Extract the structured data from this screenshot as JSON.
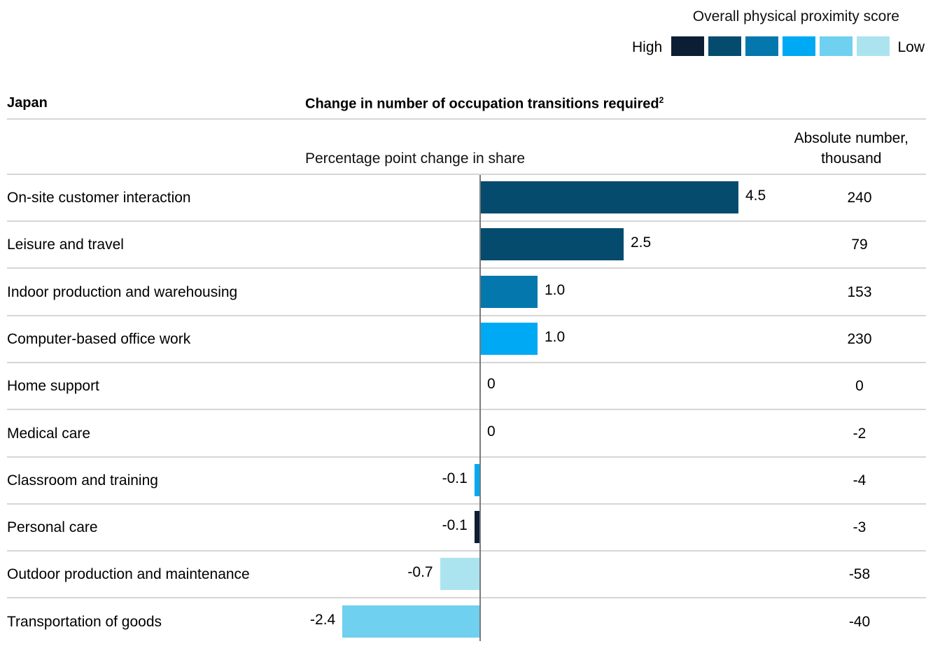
{
  "legend": {
    "title": "Overall physical proximity score",
    "high_label": "High",
    "low_label": "Low",
    "colors": [
      "#0c1e33",
      "#044b6e",
      "#0477ad",
      "#00a9f4",
      "#6fd0ef",
      "#abe4ef"
    ]
  },
  "header": {
    "country": "Japan",
    "title": "Change in number of occupation transitions required",
    "title_sup": "2"
  },
  "subheader": {
    "pct_label": "Percentage point change in share",
    "abs_line1": "Absolute number,",
    "abs_line2": "thousand"
  },
  "chart_data": {
    "type": "bar",
    "orientation": "horizontal",
    "categories": [
      "On-site customer interaction",
      "Leisure and travel",
      "Indoor production and warehousing",
      "Computer-based office work",
      "Home support",
      "Medical care",
      "Classroom and training",
      "Personal care",
      "Outdoor production and maintenance",
      "Transportation of goods"
    ],
    "values": [
      4.5,
      2.5,
      1.0,
      1.0,
      0,
      0,
      -0.1,
      -0.1,
      -0.7,
      -2.4
    ],
    "value_labels": [
      "4.5",
      "2.5",
      "1.0",
      "1.0",
      "0",
      "0",
      "-0.1",
      "-0.1",
      "-0.7",
      "-2.4"
    ],
    "absolute_thousand": [
      "240",
      "79",
      "153",
      "230",
      "0",
      "-2",
      "-4",
      "-3",
      "-58",
      "-40"
    ],
    "proximity_level": [
      2,
      2,
      3,
      4,
      0,
      0,
      4,
      1,
      6,
      5
    ]
  }
}
